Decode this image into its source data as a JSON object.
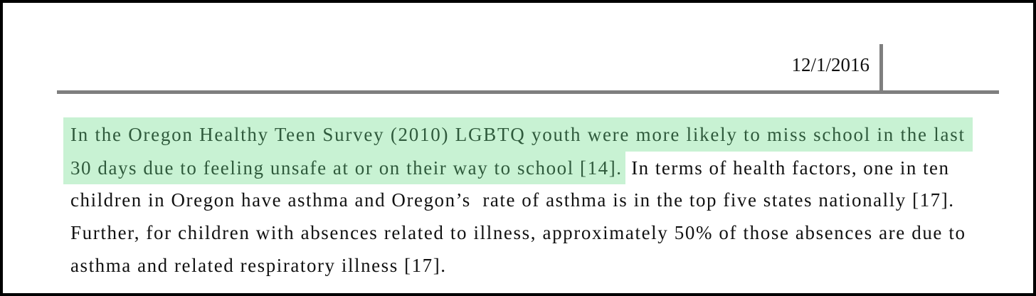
{
  "header": {
    "date": "12/1/2016"
  },
  "paragraph": {
    "lines": [
      {
        "highlighted": "In the Oregon Healthy Teen Survey (2010) LGBTQ youth were more likely to miss school in the last"
      },
      {
        "highlighted": "30 days due to feeling unsafe at or on their way to school [14].",
        "text": " In terms of health factors, one in ten"
      },
      {
        "text": "children in Oregon have asthma and Oregon’s  rate of asthma is in the top five states nationally [17]."
      },
      {
        "text": "Further, for children with absences related to illness, approximately 50% of those absences are due to"
      },
      {
        "text": "asthma and related respiratory illness [17]."
      }
    ]
  }
}
